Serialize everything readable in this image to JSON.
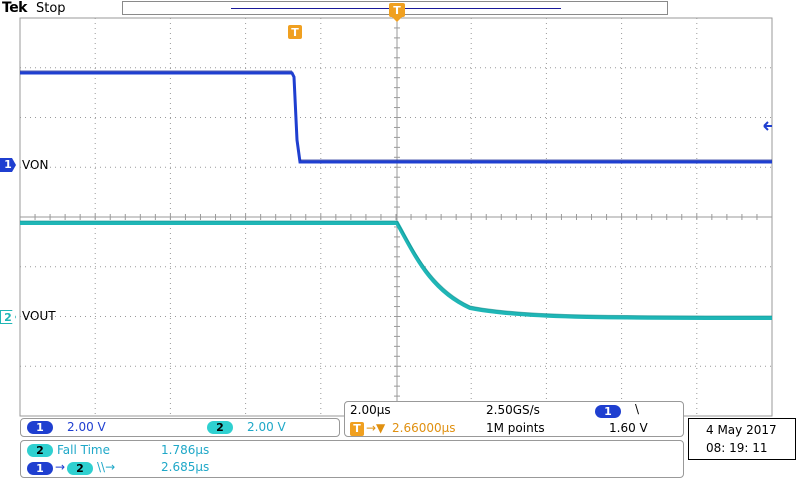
{
  "header": {
    "brand": "Tek",
    "acquisition_state": "Stop"
  },
  "channels": [
    {
      "id": "1",
      "label": "VON",
      "color": "#1f3fd0"
    },
    {
      "id": "2",
      "label": "VOUT",
      "color": "#1fb6b6"
    }
  ],
  "trigger_marker": "T",
  "vertical_settings": {
    "ch1_scale": "2.00 V",
    "ch2_scale": "2.00 V"
  },
  "timebase": {
    "horizontal_scale": "2.00µs",
    "sample_rate": "2.50GS/s",
    "trigger_delay": "2.66000µs",
    "record_length": "1M points",
    "trigger_source": "1",
    "trigger_slope": "\\",
    "trigger_level": "1.60 V"
  },
  "measurements": [
    {
      "source": "2",
      "name": "Fall Time",
      "value": "1.786µs"
    },
    {
      "source": "1",
      "target": "2",
      "name": "\\\\→",
      "value": "2.685µs"
    }
  ],
  "datetime": {
    "date": "4 May   2017",
    "time": "08: 19: 11"
  },
  "colors": {
    "ch1": "#1f3fd0",
    "ch2": "#1fb6b6",
    "trigger": "#f0a020",
    "grid": "#9a9a9a"
  }
}
